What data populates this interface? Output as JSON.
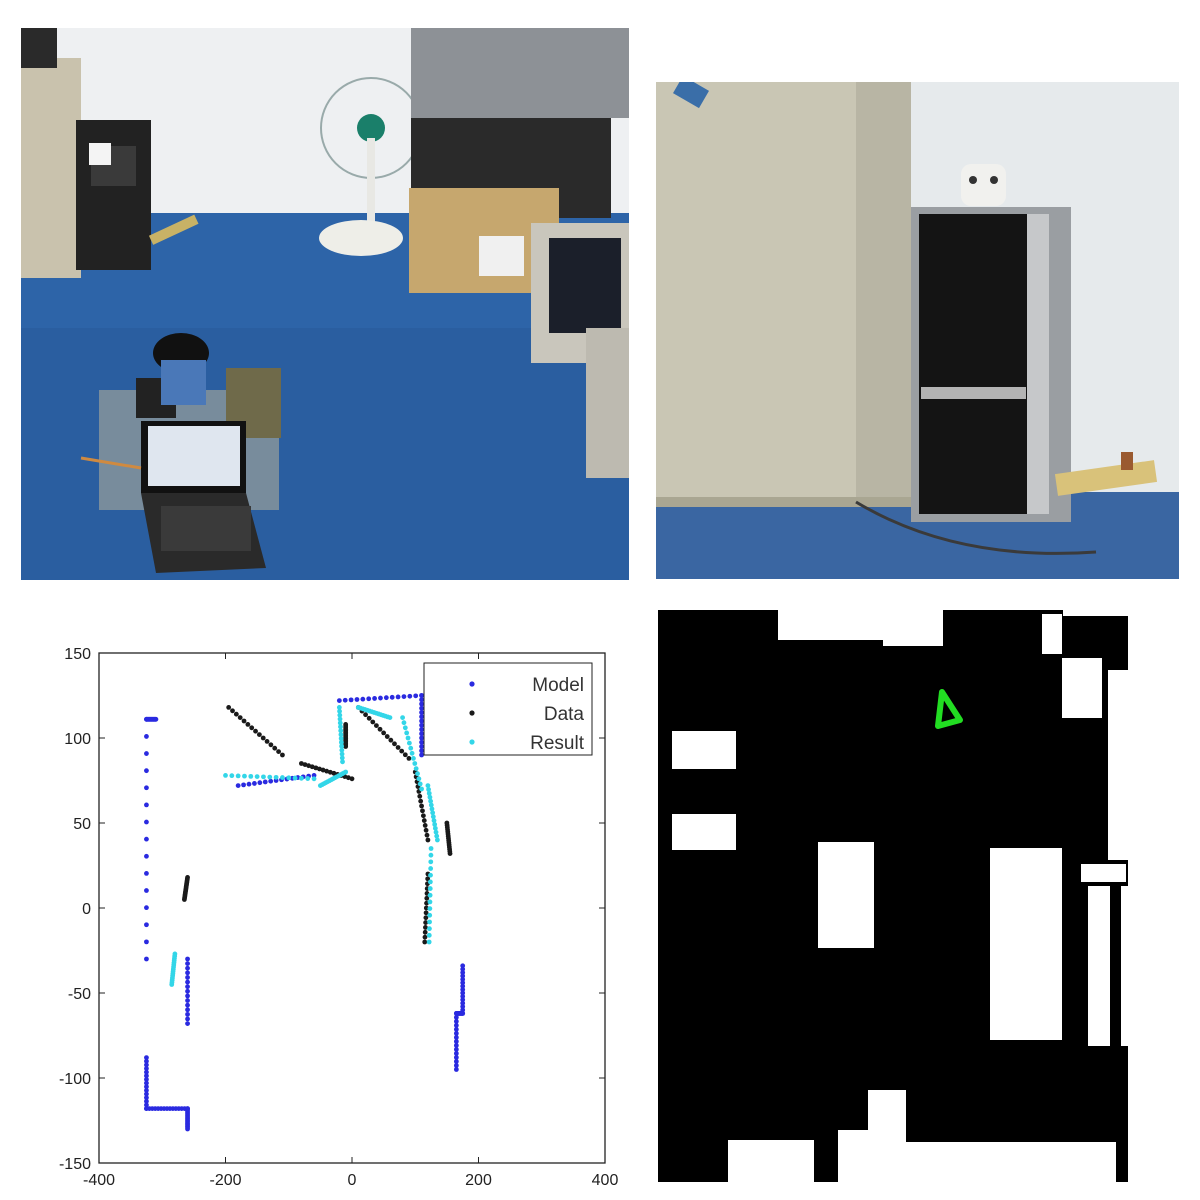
{
  "photos": {
    "lab_scene": "lab-room-with-mobile-robot-photo",
    "pc_scene": "desktop-computer-tower-photo"
  },
  "chart_data": {
    "type": "scatter",
    "title": "",
    "xlabel": "",
    "ylabel": "",
    "xlim": [
      -400,
      400
    ],
    "ylim": [
      -150,
      150
    ],
    "x_ticks": [
      -400,
      -200,
      0,
      200,
      400
    ],
    "y_ticks": [
      150,
      100,
      50,
      0,
      -50,
      -100,
      -150
    ],
    "grid": false,
    "legend_position": "top-right",
    "series": [
      {
        "name": "Model",
        "color": "#2a2ae0",
        "segments": [
          [
            [
              -310,
              111
            ],
            [
              -325,
              111
            ]
          ],
          [
            [
              -325,
              111
            ],
            [
              -325,
              -30
            ]
          ],
          [
            [
              -325,
              -88
            ],
            [
              -325,
              -118
            ]
          ],
          [
            [
              -325,
              -118
            ],
            [
              -260,
              -118
            ]
          ],
          [
            [
              -260,
              -118
            ],
            [
              -260,
              -130
            ]
          ],
          [
            [
              -260,
              -30
            ],
            [
              -260,
              -68
            ]
          ],
          [
            [
              -180,
              72
            ],
            [
              -60,
              78
            ]
          ],
          [
            [
              -20,
              122
            ],
            [
              110,
              125
            ]
          ],
          [
            [
              110,
              125
            ],
            [
              110,
              90
            ]
          ],
          [
            [
              175,
              -34
            ],
            [
              175,
              -62
            ]
          ],
          [
            [
              175,
              -62
            ],
            [
              165,
              -62
            ]
          ],
          [
            [
              165,
              -62
            ],
            [
              165,
              -95
            ]
          ]
        ]
      },
      {
        "name": "Data",
        "color": "#1a1a1a",
        "segments": [
          [
            [
              -195,
              118
            ],
            [
              -110,
              90
            ]
          ],
          [
            [
              -80,
              85
            ],
            [
              0,
              76
            ]
          ],
          [
            [
              -10,
              108
            ],
            [
              -10,
              95
            ]
          ],
          [
            [
              10,
              118
            ],
            [
              90,
              88
            ]
          ],
          [
            [
              100,
              80
            ],
            [
              120,
              40
            ]
          ],
          [
            [
              120,
              20
            ],
            [
              115,
              -20
            ]
          ],
          [
            [
              150,
              50
            ],
            [
              155,
              32
            ]
          ],
          [
            [
              -260,
              18
            ],
            [
              -265,
              5
            ]
          ]
        ]
      },
      {
        "name": "Result",
        "color": "#33d6e8",
        "segments": [
          [
            [
              -200,
              78
            ],
            [
              -60,
              76
            ]
          ],
          [
            [
              -50,
              72
            ],
            [
              -10,
              80
            ]
          ],
          [
            [
              -20,
              118
            ],
            [
              -15,
              86
            ]
          ],
          [
            [
              10,
              118
            ],
            [
              60,
              112
            ]
          ],
          [
            [
              80,
              112
            ],
            [
              110,
              70
            ]
          ],
          [
            [
              120,
              72
            ],
            [
              135,
              40
            ]
          ],
          [
            [
              125,
              35
            ],
            [
              122,
              -20
            ]
          ],
          [
            [
              -280,
              -27
            ],
            [
              -285,
              -45
            ]
          ]
        ]
      }
    ]
  },
  "occupancy_map": {
    "background": "#000000",
    "free_color": "#ffffff",
    "robot_color": "#22dd22",
    "robot_shape": "triangle-icon"
  }
}
